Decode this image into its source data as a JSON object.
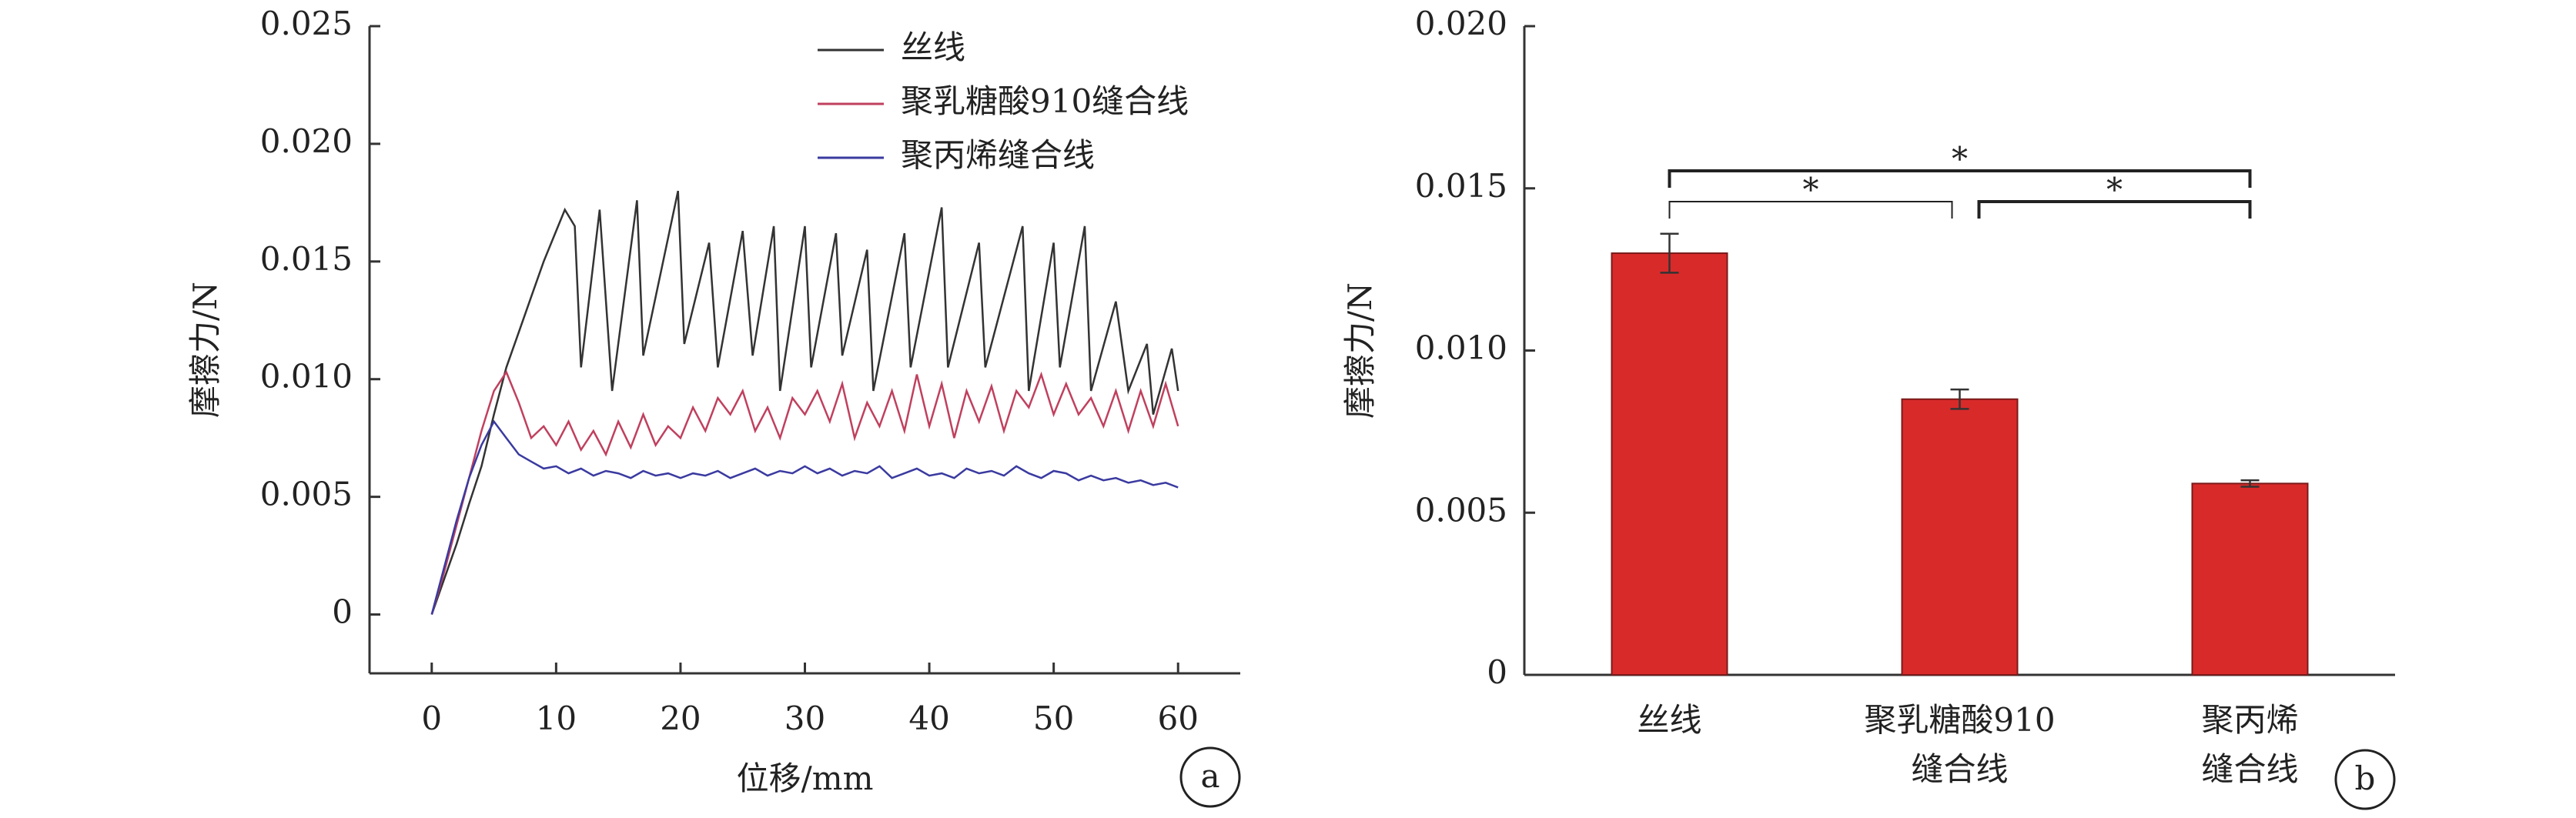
{
  "chart_data": [
    {
      "type": "line",
      "panel": "a",
      "xlabel": "位移/mm",
      "ylabel": "摩擦力/N",
      "x": [
        0,
        1,
        2,
        3,
        4,
        5,
        6,
        7,
        8,
        9,
        10,
        11,
        12,
        13,
        14,
        15,
        16,
        17,
        18,
        19,
        20,
        21,
        22,
        23,
        24,
        25,
        26,
        27,
        28,
        29,
        30,
        31,
        32,
        33,
        34,
        35,
        36,
        37,
        38,
        39,
        40,
        41,
        42,
        43,
        44,
        45,
        46,
        47,
        48,
        49,
        50,
        51,
        52,
        53,
        54,
        55,
        56,
        57,
        58,
        59,
        60
      ],
      "xlim": [
        -5,
        65
      ],
      "xticks": [
        0,
        10,
        20,
        30,
        40,
        50,
        60
      ],
      "ylim": [
        -0.0025,
        0.025
      ],
      "yticks": [
        0,
        0.005,
        {
          "value": 0.01,
          "label": "0.010"
        },
        0.015,
        {
          "value": 0.02,
          "label": "0.020"
        },
        0.025
      ],
      "series": [
        {
          "name": "丝线",
          "color": "#333333",
          "x": [
            0,
            1,
            2,
            3,
            4,
            5,
            6,
            7,
            8,
            9,
            10,
            10.7,
            11.5,
            12,
            13.5,
            14.5,
            16.5,
            17,
            19.8,
            20.3,
            22.3,
            23,
            25,
            25.8,
            27.5,
            28,
            30,
            30.5,
            32.5,
            33,
            35,
            35.5,
            38,
            38.5,
            41,
            41.5,
            44,
            44.5,
            47.5,
            48,
            50,
            50.5,
            52.5,
            53,
            55,
            56,
            57.5,
            58,
            59.5,
            60
          ],
          "values": [
            0,
            0.0015,
            0.003,
            0.0047,
            0.0063,
            0.0085,
            0.0105,
            0.012,
            0.0135,
            0.015,
            0.0163,
            0.0172,
            0.0165,
            0.0105,
            0.0172,
            0.0095,
            0.0176,
            0.011,
            0.018,
            0.0115,
            0.0158,
            0.0105,
            0.0163,
            0.011,
            0.0165,
            0.0095,
            0.0165,
            0.0105,
            0.0162,
            0.011,
            0.0155,
            0.0095,
            0.0162,
            0.0105,
            0.0173,
            0.0105,
            0.0158,
            0.0105,
            0.0165,
            0.0095,
            0.0158,
            0.0105,
            0.0165,
            0.0095,
            0.0133,
            0.0095,
            0.0115,
            0.0085,
            0.0113,
            0.0095
          ]
        },
        {
          "name": "聚乳糖酸910缝合线",
          "color": "#c0405e",
          "values": [
            0,
            0.0018,
            0.0038,
            0.0058,
            0.0078,
            0.0095,
            0.0103,
            0.009,
            0.0075,
            0.008,
            0.0072,
            0.0082,
            0.007,
            0.0078,
            0.0068,
            0.0082,
            0.0071,
            0.0085,
            0.0072,
            0.008,
            0.0075,
            0.0088,
            0.0078,
            0.0092,
            0.0085,
            0.0095,
            0.0078,
            0.0088,
            0.0075,
            0.0092,
            0.0085,
            0.0095,
            0.0082,
            0.0098,
            0.0075,
            0.009,
            0.008,
            0.0095,
            0.0078,
            0.0102,
            0.008,
            0.0098,
            0.0075,
            0.0095,
            0.0082,
            0.0097,
            0.0078,
            0.0095,
            0.0088,
            0.0102,
            0.0085,
            0.0098,
            0.0085,
            0.0092,
            0.008,
            0.0095,
            0.0078,
            0.0095,
            0.008,
            0.0098,
            0.008
          ]
        },
        {
          "name": "聚丙烯缝合线",
          "color": "#3a3aa0",
          "values": [
            0,
            0.002,
            0.004,
            0.0058,
            0.0072,
            0.0082,
            0.0075,
            0.0068,
            0.0065,
            0.0062,
            0.0063,
            0.006,
            0.0062,
            0.0059,
            0.0061,
            0.006,
            0.0058,
            0.0061,
            0.0059,
            0.006,
            0.0058,
            0.006,
            0.0059,
            0.0061,
            0.0058,
            0.006,
            0.0062,
            0.0059,
            0.0061,
            0.006,
            0.0063,
            0.006,
            0.0062,
            0.0059,
            0.0061,
            0.006,
            0.0063,
            0.0058,
            0.006,
            0.0062,
            0.0059,
            0.006,
            0.0058,
            0.0062,
            0.006,
            0.0061,
            0.0059,
            0.0063,
            0.006,
            0.0058,
            0.0061,
            0.006,
            0.0057,
            0.0059,
            0.0057,
            0.0058,
            0.0056,
            0.0057,
            0.0055,
            0.0056,
            0.0054
          ]
        }
      ]
    },
    {
      "type": "bar",
      "panel": "b",
      "ylabel": "摩擦力/N",
      "categories": [
        [
          "丝线"
        ],
        [
          "聚乳糖酸910",
          "缝合线"
        ],
        [
          "聚丙烯",
          "缝合线"
        ]
      ],
      "values": [
        0.013,
        0.0085,
        0.0059
      ],
      "errors": [
        0.0006,
        0.0003,
        0.0001
      ],
      "color": "#d92a2a",
      "ylim": [
        0,
        0.02
      ],
      "yticks": [
        0,
        0.005,
        {
          "value": 0.01,
          "label": "0.010"
        },
        0.015,
        {
          "value": 0.02,
          "label": "0.020"
        }
      ],
      "annotations": [
        {
          "from": 0,
          "to": 2,
          "label": "*"
        },
        {
          "from": 0,
          "to": 1,
          "label": "*"
        },
        {
          "from": 1,
          "to": 2,
          "label": "*"
        }
      ]
    }
  ]
}
